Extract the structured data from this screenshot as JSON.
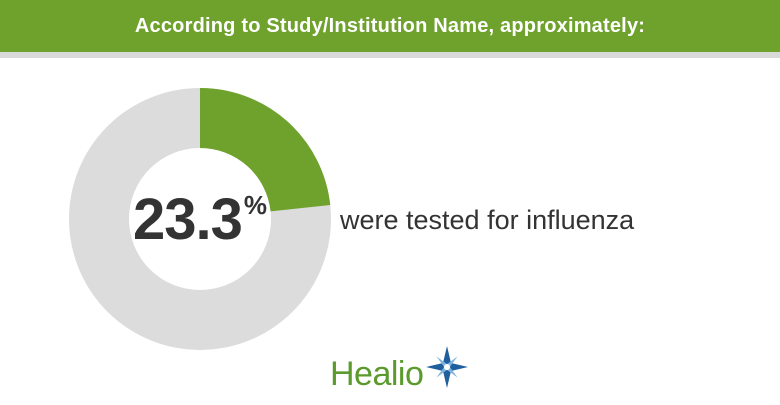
{
  "banner": {
    "text": "According to Study/Institution Name, approximately:"
  },
  "chart_data": {
    "type": "pie",
    "variant": "donut",
    "title": "",
    "slices": [
      {
        "label": "were tested for influenza",
        "value": 23.3,
        "color": "#6ea22c"
      },
      {
        "label": "",
        "value": 76.7,
        "color": "#dcdcdc"
      }
    ],
    "center_label": {
      "value": "23.3",
      "unit": "%"
    },
    "caption": "were tested for influenza"
  },
  "brand": {
    "name": "Healio",
    "logo": "healio-star-icon",
    "colors": {
      "text": "#5b9a2c",
      "star_blue": "#1f5f9e",
      "star_light": "#7fb3dc"
    }
  },
  "colors": {
    "accent": "#6ea22c",
    "track": "#dcdcdc",
    "text": "#333333",
    "banner_text": "#ffffff"
  }
}
